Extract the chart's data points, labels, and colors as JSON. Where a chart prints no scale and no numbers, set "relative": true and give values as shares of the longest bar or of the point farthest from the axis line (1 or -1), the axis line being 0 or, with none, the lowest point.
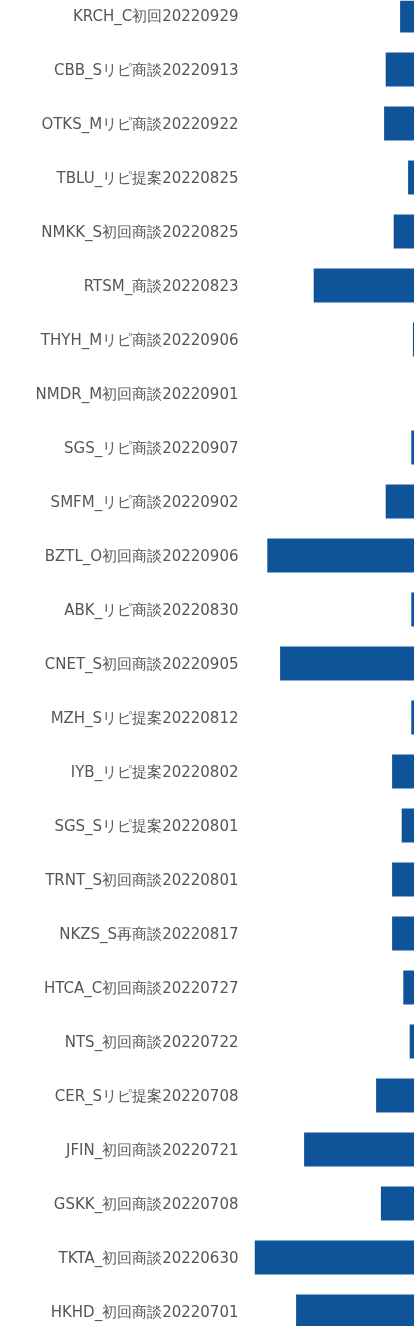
{
  "chart_data": {
    "type": "bar",
    "orientation": "horizontal",
    "relative": true,
    "color": "#0f5499",
    "categories": [
      "KRCH_C初回20220929",
      "CBB_Sリピ商談20220913",
      "OTKS_Mリピ商談20220922",
      "TBLU_リピ提案20220825",
      "NMKK_S初回商談20220825",
      "RTSM_商談20220823",
      "THYH_Mリピ商談20220906",
      "NMDR_M初回商談20220901",
      "SGS_リピ商談20220907",
      "SMFM_リピ商談20220902",
      "BZTL_O初回商談20220906",
      "ABK_リピ商談20220830",
      "CNET_S初回商談20220905",
      "MZH_Sリピ提案20220812",
      "IYB_リピ提案20220802",
      "SGS_Sリピ提案20220801",
      "TRNT_S初回商談20220801",
      "NKZS_S再商談20220817",
      "HTCA_C初回商談20220727",
      "NTS_初回商談20220722",
      "CER_Sリピ提案20220708",
      "JFIN_初回商談20220721",
      "GSKK_初回商談20220708",
      "TKTA_初回商談20220630",
      "HKHD_初回商談20220701"
    ],
    "values": [
      0.09,
      0.18,
      0.19,
      0.04,
      0.13,
      0.63,
      0.01,
      0,
      0.02,
      0.18,
      0.92,
      0.02,
      0.84,
      0.02,
      0.14,
      0.08,
      0.14,
      0.14,
      0.07,
      0.03,
      0.24,
      0.69,
      0.21,
      1,
      0.74
    ]
  }
}
